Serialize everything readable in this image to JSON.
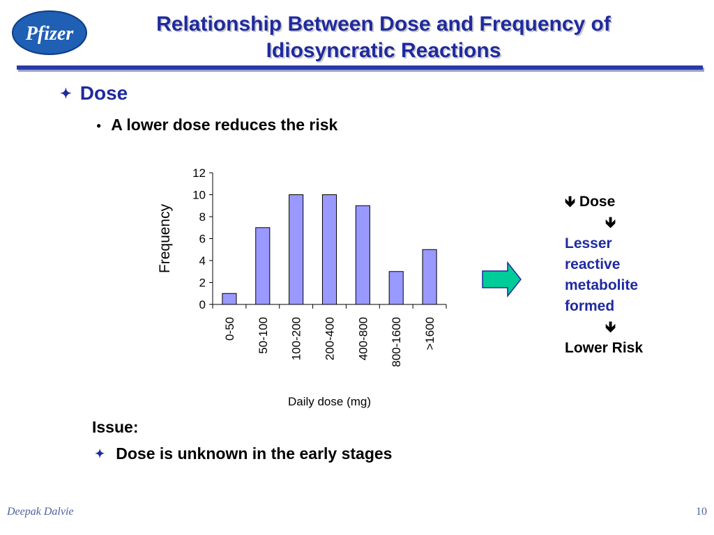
{
  "logo": {
    "text": "Pfizer"
  },
  "title": "Relationship Between Dose and Frequency of Idiosyncratic Reactions",
  "bullet_level1": {
    "mark": "✦",
    "text": "Dose"
  },
  "bullet_level2": {
    "mark": "●",
    "text": "A lower dose reduces the risk"
  },
  "chart_data": {
    "type": "bar",
    "categories": [
      "0-50",
      "50-100",
      "100-200",
      "200-400",
      "400-800",
      "800-1600",
      ">1600"
    ],
    "values": [
      1,
      7,
      10,
      10,
      9,
      3,
      5
    ],
    "xlabel": "Daily dose (mg)",
    "ylabel": "Frequency",
    "ylim": [
      0,
      12
    ],
    "yticks": [
      0,
      2,
      4,
      6,
      8,
      10,
      12
    ],
    "bar_color": "#9999ff",
    "grid": false
  },
  "flow": {
    "dose": "Dose",
    "down_arrow": "🡻",
    "result_line1": "Lesser",
    "result_line2": "reactive",
    "result_line3": "metabolite",
    "result_line4": "formed",
    "final": "Lower Risk"
  },
  "issue": {
    "heading": "Issue:",
    "mark": "✦",
    "text": "Dose is unknown in the early stages"
  },
  "footer": {
    "author": "Deepak Dalvie",
    "page": "10"
  },
  "colors": {
    "title": "#1f2a9e",
    "arrow_fill": "#00cc99",
    "rule": "#2b3aa8"
  }
}
